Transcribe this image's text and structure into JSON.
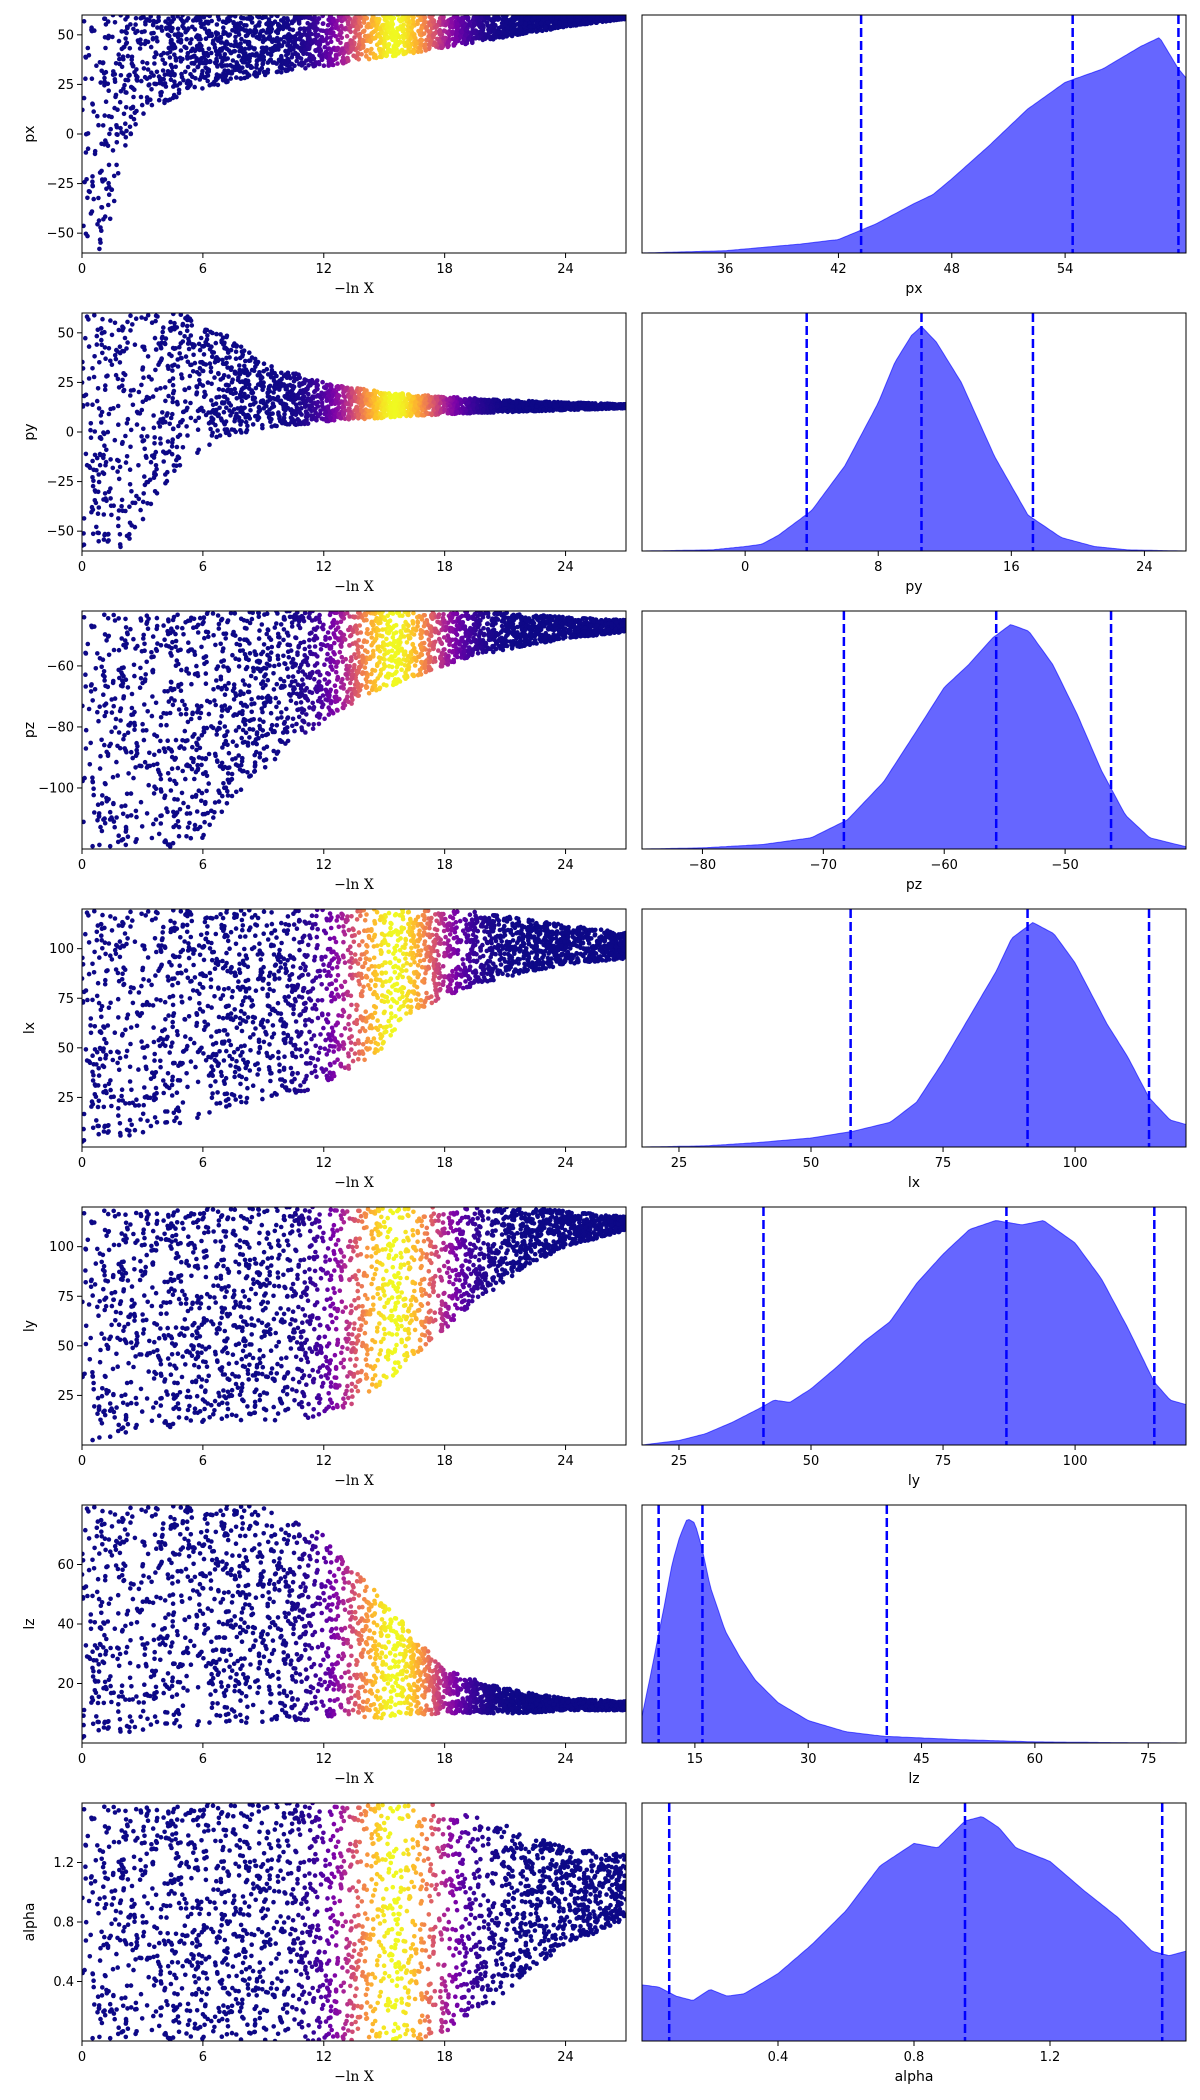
{
  "chart_data": [
    {
      "type": "scatter",
      "panel": "trace",
      "parameter": "px",
      "xlabel": "−ln X",
      "ylabel": "px",
      "xlim": [
        0,
        27
      ],
      "ylim": [
        -60,
        60
      ],
      "xticks": [
        0,
        6,
        12,
        18,
        24
      ],
      "xtick_labels": [
        "0",
        "6",
        "12",
        "18",
        "24"
      ],
      "yticks": [
        -50,
        -25,
        0,
        25,
        50
      ],
      "ytick_labels": [
        "−50",
        "−25",
        "0",
        "25",
        "50"
      ],
      "envelope": {
        "x": [
          0,
          1,
          1.5,
          2,
          3,
          5,
          8,
          12,
          16,
          20,
          24,
          27
        ],
        "lower": [
          -60,
          -60,
          -40,
          -10,
          10,
          20,
          28,
          34,
          40,
          47,
          54,
          58
        ],
        "upper": [
          60,
          60,
          60,
          60,
          60,
          60,
          60,
          60,
          60,
          60,
          60,
          60
        ]
      },
      "weight_peak": 15.5,
      "weight_width": 1.8,
      "colormap": "plasma"
    },
    {
      "type": "area",
      "panel": "marginal",
      "parameter": "px",
      "xlabel": "px",
      "xlim": [
        31.6,
        60.4
      ],
      "xticks": [
        36,
        42,
        48,
        54
      ],
      "xtick_labels": [
        "36",
        "42",
        "48",
        "54"
      ],
      "quantiles": [
        43.2,
        54.4,
        60
      ],
      "density": {
        "x": [
          31.6,
          36,
          40,
          42,
          44,
          46,
          47,
          48,
          50,
          52,
          54,
          56,
          58,
          59,
          60,
          60.4
        ],
        "y": [
          0,
          0.01,
          0.04,
          0.06,
          0.13,
          0.22,
          0.26,
          0.33,
          0.48,
          0.64,
          0.76,
          0.82,
          0.92,
          0.96,
          0.82,
          0.78
        ]
      },
      "fill_color": "#6666ff",
      "line_color": "#0000ff"
    },
    {
      "type": "scatter",
      "panel": "trace",
      "parameter": "py",
      "xlabel": "−ln X",
      "ylabel": "py",
      "xlim": [
        0,
        27
      ],
      "ylim": [
        -60,
        60
      ],
      "xticks": [
        0,
        6,
        12,
        18,
        24
      ],
      "xtick_labels": [
        "0",
        "6",
        "12",
        "18",
        "24"
      ],
      "yticks": [
        -50,
        -25,
        0,
        25,
        50
      ],
      "ytick_labels": [
        "−50",
        "−25",
        "0",
        "25",
        "50"
      ],
      "envelope": {
        "x": [
          0,
          2,
          3,
          5,
          7,
          9,
          12,
          15,
          18,
          21,
          24,
          27
        ],
        "lower": [
          -60,
          -60,
          -45,
          -15,
          -3,
          2,
          5,
          7,
          9,
          10,
          11,
          12
        ],
        "upper": [
          60,
          60,
          60,
          60,
          50,
          35,
          25,
          20,
          18,
          16,
          15,
          14
        ]
      },
      "weight_peak": 15.5,
      "weight_width": 1.8,
      "colormap": "plasma"
    },
    {
      "type": "area",
      "panel": "marginal",
      "parameter": "py",
      "xlabel": "py",
      "xlim": [
        -6.2,
        26.5
      ],
      "xticks": [
        0,
        8,
        16,
        24
      ],
      "xtick_labels": [
        "0",
        "8",
        "16",
        "24"
      ],
      "quantiles": [
        3.7,
        10.6,
        17.3
      ],
      "density": {
        "x": [
          -6.2,
          -2,
          0,
          1,
          2,
          4,
          6,
          8,
          9,
          10,
          10.6,
          11.5,
          13,
          15,
          17,
          19,
          21,
          23,
          26.5
        ],
        "y": [
          0,
          0.005,
          0.02,
          0.03,
          0.07,
          0.18,
          0.38,
          0.66,
          0.84,
          0.96,
          1.0,
          0.93,
          0.75,
          0.42,
          0.16,
          0.06,
          0.02,
          0.005,
          0
        ]
      },
      "fill_color": "#6666ff",
      "line_color": "#0000ff"
    },
    {
      "type": "scatter",
      "panel": "trace",
      "parameter": "pz",
      "xlabel": "−ln X",
      "ylabel": "pz",
      "xlim": [
        0,
        27
      ],
      "ylim": [
        -120,
        -42
      ],
      "xticks": [
        0,
        6,
        12,
        18,
        24
      ],
      "xtick_labels": [
        "0",
        "6",
        "12",
        "18",
        "24"
      ],
      "yticks": [
        -100,
        -80,
        -60
      ],
      "ytick_labels": [
        "−100",
        "−80",
        "−60"
      ],
      "envelope": {
        "x": [
          0,
          4,
          6,
          8,
          10,
          12,
          14,
          16,
          18,
          20,
          24,
          27
        ],
        "lower": [
          -120,
          -120,
          -117,
          -100,
          -88,
          -78,
          -70,
          -65,
          -60,
          -56,
          -51,
          -49
        ],
        "upper": [
          -42,
          -42,
          -42,
          -42,
          -42,
          -42,
          -42,
          -42,
          -42,
          -42,
          -44,
          -45
        ]
      },
      "weight_peak": 15.5,
      "weight_width": 1.8,
      "colormap": "plasma"
    },
    {
      "type": "area",
      "panel": "marginal",
      "parameter": "pz",
      "xlabel": "pz",
      "xlim": [
        -85,
        -40
      ],
      "xticks": [
        -80,
        -70,
        -60,
        -50
      ],
      "xtick_labels": [
        "−80",
        "−70",
        "−60",
        "−50"
      ],
      "quantiles": [
        -68.3,
        -55.7,
        -46.2
      ],
      "density": {
        "x": [
          -85,
          -80,
          -75,
          -71,
          -68,
          -65,
          -62,
          -60,
          -58,
          -56,
          -54.5,
          -53,
          -51,
          -49,
          -47,
          -45,
          -43,
          -40
        ],
        "y": [
          0,
          0.005,
          0.02,
          0.05,
          0.13,
          0.3,
          0.55,
          0.72,
          0.82,
          0.94,
          1.0,
          0.97,
          0.82,
          0.6,
          0.35,
          0.15,
          0.05,
          0.01
        ]
      },
      "fill_color": "#6666ff",
      "line_color": "#0000ff"
    },
    {
      "type": "scatter",
      "panel": "trace",
      "parameter": "lx",
      "xlabel": "−ln X",
      "ylabel": "lx",
      "xlim": [
        0,
        27
      ],
      "ylim": [
        0,
        120
      ],
      "xticks": [
        0,
        6,
        12,
        18,
        24
      ],
      "xtick_labels": [
        "0",
        "6",
        "12",
        "18",
        "24"
      ],
      "yticks": [
        25,
        50,
        75,
        100
      ],
      "ytick_labels": [
        "25",
        "50",
        "75",
        "100"
      ],
      "envelope": {
        "x": [
          0,
          2,
          5,
          8,
          11,
          13,
          15,
          16,
          18,
          20,
          22,
          24,
          27
        ],
        "lower": [
          0,
          4,
          12,
          22,
          28,
          35,
          50,
          65,
          76,
          83,
          88,
          92,
          95
        ],
        "upper": [
          120,
          120,
          120,
          120,
          120,
          120,
          120,
          120,
          120,
          118,
          115,
          112,
          108
        ]
      },
      "weight_peak": 15.5,
      "weight_width": 1.8,
      "colormap": "plasma"
    },
    {
      "type": "area",
      "panel": "marginal",
      "parameter": "lx",
      "xlabel": "lx",
      "xlim": [
        18,
        121
      ],
      "xticks": [
        25,
        50,
        75,
        100
      ],
      "xtick_labels": [
        "25",
        "50",
        "75",
        "100"
      ],
      "quantiles": [
        57.5,
        91,
        114
      ],
      "density": {
        "x": [
          18,
          30,
          40,
          50,
          58,
          65,
          70,
          75,
          80,
          85,
          88,
          92,
          96,
          100,
          106,
          110,
          114,
          118,
          121
        ],
        "y": [
          0,
          0.005,
          0.02,
          0.04,
          0.07,
          0.11,
          0.2,
          0.38,
          0.58,
          0.78,
          0.93,
          1.0,
          0.95,
          0.82,
          0.55,
          0.4,
          0.22,
          0.12,
          0.1
        ]
      },
      "fill_color": "#6666ff",
      "line_color": "#0000ff"
    },
    {
      "type": "scatter",
      "panel": "trace",
      "parameter": "ly",
      "xlabel": "−ln X",
      "ylabel": "ly",
      "xlim": [
        0,
        27
      ],
      "ylim": [
        0,
        120
      ],
      "xticks": [
        0,
        6,
        12,
        18,
        24
      ],
      "xtick_labels": [
        "0",
        "6",
        "12",
        "18",
        "24"
      ],
      "yticks": [
        25,
        50,
        75,
        100
      ],
      "ytick_labels": [
        "25",
        "50",
        "75",
        "100"
      ],
      "envelope": {
        "x": [
          0,
          2,
          5,
          8,
          11,
          13,
          15,
          16,
          18,
          20,
          22,
          24,
          27
        ],
        "lower": [
          0,
          4,
          10,
          12,
          13,
          18,
          30,
          40,
          58,
          75,
          90,
          100,
          108
        ],
        "upper": [
          120,
          120,
          120,
          120,
          120,
          120,
          120,
          120,
          120,
          120,
          120,
          118,
          115
        ]
      },
      "weight_peak": 15.5,
      "weight_width": 1.8,
      "colormap": "plasma"
    },
    {
      "type": "area",
      "panel": "marginal",
      "parameter": "ly",
      "xlabel": "ly",
      "xlim": [
        18,
        121
      ],
      "xticks": [
        25,
        50,
        75,
        100
      ],
      "xtick_labels": [
        "25",
        "50",
        "75",
        "100"
      ],
      "quantiles": [
        41,
        87,
        115
      ],
      "density": {
        "x": [
          18,
          25,
          30,
          35,
          40,
          43,
          46,
          50,
          55,
          60,
          65,
          70,
          75,
          80,
          85,
          90,
          94,
          100,
          105,
          110,
          115,
          118,
          121
        ],
        "y": [
          0,
          0.02,
          0.05,
          0.1,
          0.16,
          0.2,
          0.19,
          0.25,
          0.35,
          0.46,
          0.55,
          0.72,
          0.85,
          0.96,
          1.0,
          0.98,
          1.0,
          0.9,
          0.74,
          0.52,
          0.28,
          0.2,
          0.18
        ]
      },
      "fill_color": "#6666ff",
      "line_color": "#0000ff"
    },
    {
      "type": "scatter",
      "panel": "trace",
      "parameter": "lz",
      "xlabel": "−ln X",
      "ylabel": "lz",
      "xlim": [
        0,
        27
      ],
      "ylim": [
        0,
        80
      ],
      "xticks": [
        0,
        6,
        12,
        18,
        24
      ],
      "xtick_labels": [
        "0",
        "6",
        "12",
        "18",
        "24"
      ],
      "yticks": [
        20,
        40,
        60
      ],
      "ytick_labels": [
        "20",
        "40",
        "60"
      ],
      "envelope": {
        "x": [
          0,
          3,
          6,
          9,
          12,
          14,
          15,
          16,
          18,
          20,
          22,
          24,
          27
        ],
        "lower": [
          0,
          4,
          6,
          7,
          8,
          8,
          8,
          9,
          10,
          10,
          10,
          11,
          11
        ],
        "upper": [
          80,
          80,
          80,
          80,
          70,
          55,
          48,
          40,
          25,
          20,
          17,
          15,
          14
        ]
      },
      "weight_peak": 15.5,
      "weight_width": 1.8,
      "colormap": "plasma"
    },
    {
      "type": "area",
      "panel": "marginal",
      "parameter": "lz",
      "xlabel": "lz",
      "xlim": [
        8,
        80
      ],
      "xticks": [
        15,
        30,
        45,
        60,
        75
      ],
      "xtick_labels": [
        "15",
        "30",
        "45",
        "60",
        "75"
      ],
      "quantiles": [
        10.2,
        16,
        40.4
      ],
      "density": {
        "x": [
          8,
          9,
          10,
          11,
          12,
          13,
          14,
          15,
          16,
          17,
          19,
          21,
          23,
          26,
          30,
          35,
          40,
          50,
          60,
          70,
          80
        ],
        "y": [
          0.12,
          0.28,
          0.45,
          0.62,
          0.8,
          0.92,
          1.0,
          0.98,
          0.86,
          0.7,
          0.5,
          0.38,
          0.28,
          0.18,
          0.1,
          0.05,
          0.03,
          0.015,
          0.005,
          0.002,
          0
        ]
      },
      "fill_color": "#6666ff",
      "line_color": "#0000ff"
    },
    {
      "type": "scatter",
      "panel": "trace",
      "parameter": "alpha",
      "xlabel": "−ln X",
      "ylabel": "alpha",
      "xlim": [
        0,
        27
      ],
      "ylim": [
        0,
        1.6
      ],
      "xticks": [
        0,
        6,
        12,
        18,
        24
      ],
      "xtick_labels": [
        "0",
        "6",
        "12",
        "18",
        "24"
      ],
      "yticks": [
        0.4,
        0.8,
        1.2
      ],
      "ytick_labels": [
        "0.4",
        "0.8",
        "1.2"
      ],
      "envelope": {
        "x": [
          0,
          6,
          12,
          15,
          17,
          18,
          20,
          22,
          24,
          27
        ],
        "lower": [
          0,
          0,
          0,
          0,
          0,
          0.05,
          0.2,
          0.45,
          0.65,
          0.8
        ],
        "upper": [
          1.6,
          1.6,
          1.6,
          1.6,
          1.6,
          1.58,
          1.5,
          1.4,
          1.3,
          1.25
        ]
      },
      "weight_peak": 15.5,
      "weight_width": 1.8,
      "colormap": "plasma"
    },
    {
      "type": "area",
      "panel": "marginal",
      "parameter": "alpha",
      "xlabel": "alpha",
      "xlim": [
        0,
        1.6
      ],
      "xticks": [
        0.4,
        0.8,
        1.2
      ],
      "xtick_labels": [
        "0.4",
        "0.8",
        "1.2"
      ],
      "quantiles": [
        0.08,
        0.95,
        1.53
      ],
      "density": {
        "x": [
          0,
          0.05,
          0.1,
          0.15,
          0.2,
          0.25,
          0.3,
          0.4,
          0.5,
          0.6,
          0.7,
          0.8,
          0.87,
          0.95,
          1.0,
          1.05,
          1.1,
          1.2,
          1.3,
          1.4,
          1.5,
          1.55,
          1.6
        ],
        "y": [
          0.25,
          0.24,
          0.2,
          0.18,
          0.23,
          0.2,
          0.21,
          0.3,
          0.43,
          0.58,
          0.78,
          0.88,
          0.86,
          0.98,
          1.0,
          0.95,
          0.86,
          0.8,
          0.67,
          0.55,
          0.4,
          0.38,
          0.4
        ]
      },
      "fill_color": "#6666ff",
      "line_color": "#0000ff"
    }
  ]
}
